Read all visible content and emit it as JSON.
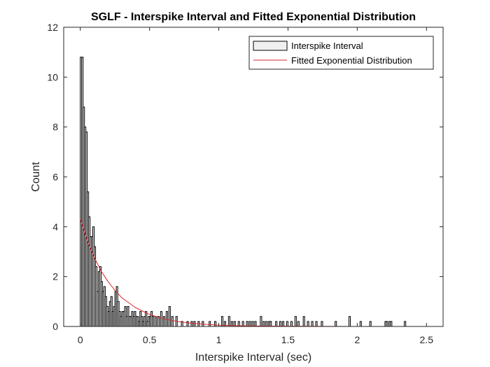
{
  "chart_data": {
    "type": "bar",
    "title": "SGLF - Interspike Interval and Fitted Exponential Distribution",
    "xlabel": "Interspike Interval (sec)",
    "ylabel": "Count",
    "xlim": [
      -0.12,
      2.62
    ],
    "ylim": [
      0,
      12
    ],
    "xticks": [
      "0",
      "0.5",
      "1",
      "1.5",
      "2",
      "2.5"
    ],
    "yticks": [
      "0",
      "2",
      "4",
      "6",
      "8",
      "10",
      "12"
    ],
    "grid": false,
    "legend_position": "top-right",
    "bar_color": "#f0f0f0",
    "bar_edge_color": "#000000",
    "fit_color": "#d62728",
    "series": [
      {
        "name": "Interspike Interval",
        "type": "bar",
        "bin_width": 0.0105,
        "x": [
          0.005,
          0.015,
          0.025,
          0.035,
          0.045,
          0.055,
          0.065,
          0.075,
          0.085,
          0.095,
          0.105,
          0.115,
          0.125,
          0.135,
          0.145,
          0.155,
          0.165,
          0.175,
          0.185,
          0.195,
          0.205,
          0.215,
          0.225,
          0.235,
          0.245,
          0.255,
          0.265,
          0.275,
          0.285,
          0.295,
          0.305,
          0.315,
          0.325,
          0.335,
          0.345,
          0.355,
          0.365,
          0.375,
          0.385,
          0.395,
          0.405,
          0.415,
          0.425,
          0.435,
          0.445,
          0.455,
          0.465,
          0.475,
          0.485,
          0.495,
          0.505,
          0.515,
          0.525,
          0.545,
          0.565,
          0.585,
          0.605,
          0.625,
          0.645,
          0.665,
          0.695,
          0.735,
          0.775,
          0.805,
          0.825,
          0.855,
          0.885,
          0.935,
          0.975,
          1.025,
          1.045,
          1.075,
          1.095,
          1.115,
          1.145,
          1.175,
          1.205,
          1.225,
          1.245,
          1.265,
          1.305,
          1.325,
          1.345,
          1.365,
          1.375,
          1.415,
          1.445,
          1.465,
          1.495,
          1.525,
          1.555,
          1.575,
          1.615,
          1.645,
          1.675,
          1.705,
          1.745,
          1.845,
          1.945,
          2.025,
          2.095,
          2.205,
          2.215,
          2.235,
          2.245,
          2.345
        ],
        "values": [
          10.8,
          10.8,
          8.8,
          8,
          7.8,
          5.4,
          4.4,
          3.6,
          3.6,
          4,
          3.2,
          2.4,
          1.4,
          2.2,
          2.4,
          1.8,
          1.4,
          1.6,
          1.2,
          0.8,
          0.6,
          1,
          1.2,
          0.6,
          0.8,
          1.4,
          1.6,
          1,
          0.6,
          0.4,
          0.6,
          0.6,
          0.8,
          0.4,
          0.8,
          0.4,
          0.4,
          0.6,
          0.4,
          0.6,
          0.4,
          0.4,
          0.2,
          0.6,
          0.4,
          0.2,
          0.4,
          0.6,
          0.2,
          0.4,
          0.4,
          0.6,
          0.4,
          0.4,
          0.4,
          0.6,
          0.4,
          0.6,
          0.8,
          0.4,
          0.4,
          0.2,
          0.2,
          0.2,
          0.2,
          0.2,
          0.2,
          0.2,
          0.2,
          0.4,
          0.2,
          0.4,
          0.2,
          0.2,
          0.2,
          0.2,
          0.2,
          0.2,
          0.2,
          0.2,
          0.4,
          0.2,
          0.2,
          0.2,
          0.2,
          0.2,
          0.2,
          0.2,
          0.2,
          0.2,
          0.4,
          0.2,
          0.4,
          0.2,
          0.2,
          0.2,
          0.2,
          0.2,
          0.4,
          0.2,
          0.2,
          0.2,
          0.2,
          0.2,
          0.2,
          0.2
        ]
      },
      {
        "name": "Fitted Exponential Distribution",
        "type": "line",
        "x": [
          0,
          0.05,
          0.1,
          0.15,
          0.2,
          0.25,
          0.3,
          0.35,
          0.4,
          0.5,
          0.6,
          0.7,
          0.8,
          1.0,
          1.2,
          1.5,
          2.0,
          2.5
        ],
        "values": [
          4.3,
          3.45,
          2.78,
          2.22,
          1.8,
          1.45,
          1.15,
          0.95,
          0.75,
          0.48,
          0.31,
          0.2,
          0.13,
          0.05,
          0.02,
          0.01,
          0,
          0
        ]
      }
    ]
  }
}
